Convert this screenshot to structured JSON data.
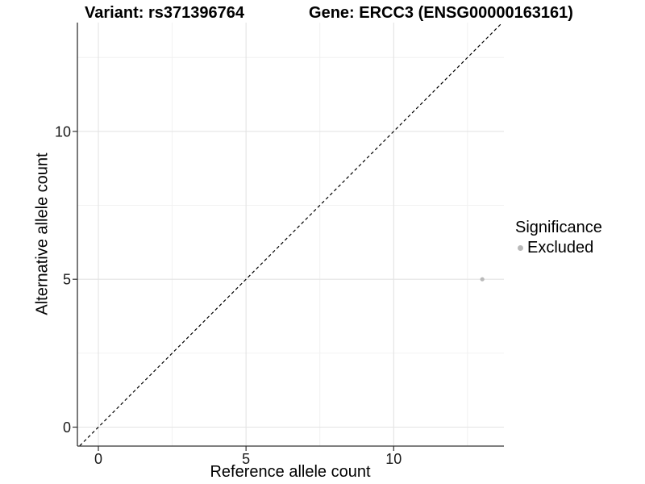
{
  "chart_data": {
    "type": "scatter",
    "title_left": "Variant: rs371396764",
    "title_right": "Gene: ERCC3 (ENSG00000163161)",
    "xlabel": "Reference allele count",
    "ylabel": "Alternative allele count",
    "xlim": [
      -0.68,
      13.68
    ],
    "ylim": [
      -0.63,
      13.68
    ],
    "xticks": [
      0,
      5,
      10
    ],
    "yticks": [
      0,
      5,
      10
    ],
    "minor_xticks": [
      2.5,
      7.5,
      12.5
    ],
    "minor_yticks": [
      2.5,
      7.5,
      12.5
    ],
    "grid": "major+minor on white background",
    "points": [
      {
        "x": 13,
        "y": 5,
        "significance": "Excluded"
      }
    ],
    "identity_line": {
      "equation": "y = x",
      "style": "dashed",
      "color": "#000000"
    },
    "legend": {
      "title": "Significance",
      "position": "right-middle",
      "items": [
        {
          "label": "Excluded",
          "color": "#b9b9b9"
        }
      ]
    },
    "colors": {
      "point": "#b9b9b9",
      "grid_major": "#e3e3e3",
      "grid_minor": "#f0f0f0",
      "axis": "#333333",
      "tick_text": "#1a1a1a",
      "background": "#ffffff"
    }
  }
}
